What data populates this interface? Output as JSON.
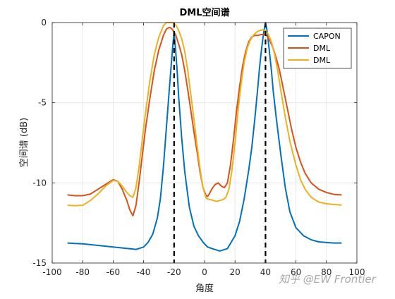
{
  "chart_data": {
    "type": "line",
    "title": "DML空间谱",
    "xlabel": "角度",
    "ylabel": "空间谱 (dB)",
    "xlim": [
      -100,
      100
    ],
    "ylim": [
      -15,
      0
    ],
    "xticks": [
      -100,
      -80,
      -60,
      -40,
      -20,
      0,
      20,
      40,
      60,
      80,
      100
    ],
    "yticks": [
      0,
      -5,
      -10,
      -15
    ],
    "grid": true,
    "legend_position": "top-right",
    "vlines": {
      "x": [
        -20,
        40
      ],
      "style": "dashed",
      "color": "#000000"
    },
    "series": [
      {
        "name": "CAPON",
        "color": "#0072bd",
        "x": [
          -90,
          -85,
          -80,
          -75,
          -70,
          -65,
          -60,
          -55,
          -50,
          -45,
          -40,
          -37,
          -34,
          -31,
          -29,
          -27,
          -25,
          -23,
          -22,
          -21,
          -20,
          -19,
          -18,
          -17,
          -15,
          -13,
          -10,
          -7,
          -4,
          -1,
          2,
          5,
          10,
          15,
          20,
          23,
          26,
          29,
          31,
          33,
          35,
          36,
          37,
          38,
          39,
          40,
          41,
          42,
          43,
          44,
          45,
          47,
          50,
          53,
          56,
          60,
          65,
          70,
          75,
          80,
          85,
          90
        ],
        "y": [
          -13.75,
          -13.78,
          -13.8,
          -13.85,
          -13.9,
          -13.95,
          -14.0,
          -14.05,
          -14.1,
          -14.15,
          -14.0,
          -13.7,
          -13.2,
          -12.2,
          -11.0,
          -9.0,
          -6.5,
          -4.0,
          -2.8,
          -1.6,
          -0.6,
          -1.7,
          -3.0,
          -4.6,
          -7.2,
          -9.3,
          -11.5,
          -12.7,
          -13.3,
          -13.7,
          -14.0,
          -14.1,
          -14.25,
          -14.1,
          -13.3,
          -12.4,
          -11.0,
          -9.2,
          -7.8,
          -6.0,
          -4.0,
          -2.9,
          -2.0,
          -1.2,
          -0.5,
          0,
          -0.5,
          -1.3,
          -2.2,
          -3.1,
          -4.2,
          -5.9,
          -8.2,
          -10.3,
          -11.8,
          -12.8,
          -13.3,
          -13.55,
          -13.68,
          -13.72,
          -13.75,
          -13.75
        ]
      },
      {
        "name": "DML",
        "color": "#d95319",
        "x": [
          -90,
          -85,
          -80,
          -75,
          -70,
          -65,
          -60,
          -57,
          -54,
          -51,
          -49,
          -47,
          -45,
          -43,
          -41,
          -39,
          -36,
          -33,
          -30,
          -27,
          -25,
          -23,
          -22,
          -21,
          -20,
          -19,
          -18,
          -17,
          -15,
          -13,
          -11,
          -9,
          -7,
          -5,
          -3,
          -1,
          1,
          2,
          3,
          5,
          7,
          9,
          11,
          13,
          15,
          17,
          19,
          21,
          23,
          25,
          27,
          29,
          31,
          33,
          35,
          37,
          39,
          40,
          41,
          43,
          45,
          47,
          49,
          51,
          54,
          57,
          60,
          63,
          66,
          70,
          75,
          80,
          85,
          90
        ],
        "y": [
          -10.75,
          -10.8,
          -10.8,
          -10.7,
          -10.4,
          -10.1,
          -9.8,
          -9.9,
          -10.4,
          -11.1,
          -11.7,
          -12.05,
          -11.4,
          -10.0,
          -8.4,
          -6.8,
          -4.8,
          -3.0,
          -1.7,
          -0.8,
          -0.4,
          -0.3,
          -0.35,
          -0.45,
          -0.6,
          -0.75,
          -1.05,
          -1.35,
          -2.0,
          -3.0,
          -4.2,
          -5.5,
          -6.8,
          -8.0,
          -9.3,
          -10.3,
          -10.8,
          -10.85,
          -10.7,
          -10.35,
          -10.1,
          -10.0,
          -10.2,
          -10.3,
          -10.0,
          -8.9,
          -7.3,
          -5.5,
          -4.0,
          -2.7,
          -1.8,
          -1.2,
          -0.9,
          -0.8,
          -0.8,
          -0.75,
          -0.75,
          -0.75,
          -0.85,
          -1.15,
          -1.6,
          -2.2,
          -2.9,
          -3.8,
          -5.2,
          -6.6,
          -7.8,
          -8.7,
          -9.4,
          -10.0,
          -10.4,
          -10.6,
          -10.72,
          -10.75
        ]
      },
      {
        "name": "DML",
        "color": "#edb120",
        "x": [
          -90,
          -85,
          -80,
          -75,
          -70,
          -65,
          -60,
          -57,
          -54,
          -51,
          -49,
          -47,
          -45,
          -43,
          -41,
          -39,
          -36,
          -33,
          -30,
          -27,
          -25,
          -23,
          -22,
          -21,
          -20,
          -19,
          -18,
          -17,
          -15,
          -13,
          -11,
          -9,
          -7,
          -5,
          -3,
          -1,
          1,
          2,
          4,
          6,
          8,
          10,
          12,
          14,
          16,
          18,
          20,
          22,
          24,
          26,
          28,
          30,
          32,
          34,
          36,
          38,
          40,
          42,
          44,
          46,
          48,
          50,
          53,
          56,
          60,
          63,
          66,
          70,
          75,
          80,
          85,
          90
        ],
        "y": [
          -11.4,
          -11.42,
          -11.4,
          -11.1,
          -10.7,
          -10.2,
          -9.85,
          -9.9,
          -10.2,
          -10.6,
          -10.8,
          -10.9,
          -10.3,
          -9.0,
          -7.4,
          -5.8,
          -3.7,
          -2.0,
          -0.9,
          -0.2,
          0,
          0,
          0,
          0,
          -0.05,
          -0.15,
          -0.3,
          -0.5,
          -1.0,
          -1.8,
          -3.0,
          -4.5,
          -6.0,
          -7.6,
          -9.1,
          -10.3,
          -10.95,
          -11.0,
          -11.05,
          -11.1,
          -11.15,
          -11.1,
          -11.05,
          -10.9,
          -10.4,
          -9.2,
          -7.5,
          -5.5,
          -3.8,
          -2.5,
          -1.6,
          -1.1,
          -0.8,
          -0.6,
          -0.5,
          -0.45,
          -0.5,
          -0.75,
          -1.25,
          -2.0,
          -3.0,
          -4.2,
          -5.9,
          -7.4,
          -8.9,
          -9.8,
          -10.4,
          -10.9,
          -11.2,
          -11.3,
          -11.35,
          -11.38
        ]
      }
    ]
  },
  "watermark": "知乎 @EW Frontier"
}
